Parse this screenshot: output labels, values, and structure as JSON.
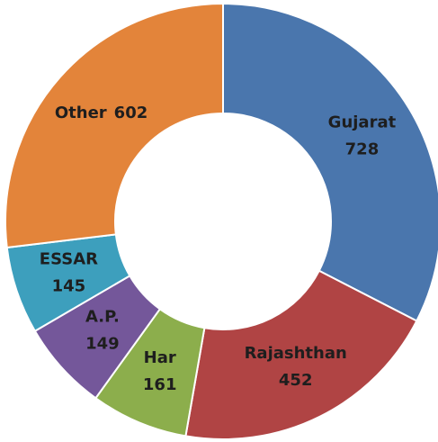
{
  "chart_data": {
    "type": "donut",
    "categories": [
      "Gujarat",
      "Rajashthan",
      "Har",
      "A.P.",
      "ESSAR",
      "Other"
    ],
    "values": [
      728,
      452,
      161,
      149,
      145,
      602
    ],
    "colors": [
      "#4a76ad",
      "#b04444",
      "#8cae4c",
      "#74579a",
      "#3d9fbd",
      "#e3843a"
    ]
  }
}
